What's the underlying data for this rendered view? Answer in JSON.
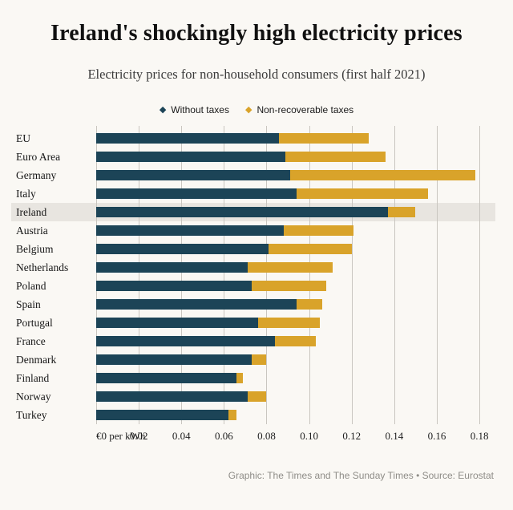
{
  "title": "Ireland's shockingly high electricity prices",
  "subtitle": "Electricity prices for non-household consumers (first half 2021)",
  "legend": [
    {
      "label": "Without taxes",
      "color": "#1c4457"
    },
    {
      "label": "Non-recoverable taxes",
      "color": "#d9a32a"
    }
  ],
  "footer": "Graphic: The Times and The Sunday Times • Source: Eurostat",
  "chart_data": {
    "type": "bar",
    "orientation": "horizontal",
    "stacked": true,
    "title": "Ireland's shockingly high electricity prices",
    "subtitle": "Electricity prices for non-household consumers (first half 2021)",
    "categories": [
      "EU",
      "Euro Area",
      "Germany",
      "Italy",
      "Ireland",
      "Austria",
      "Belgium",
      "Netherlands",
      "Poland",
      "Spain",
      "Portugal",
      "France",
      "Denmark",
      "Finland",
      "Norway",
      "Turkey"
    ],
    "series": [
      {
        "name": "Without taxes",
        "color": "#1c4457",
        "values": [
          0.086,
          0.089,
          0.091,
          0.094,
          0.137,
          0.088,
          0.081,
          0.071,
          0.073,
          0.094,
          0.076,
          0.084,
          0.073,
          0.066,
          0.071,
          0.062
        ]
      },
      {
        "name": "Non-recoverable taxes",
        "color": "#d9a32a",
        "values": [
          0.042,
          0.047,
          0.087,
          0.062,
          0.013,
          0.033,
          0.039,
          0.04,
          0.035,
          0.012,
          0.029,
          0.019,
          0.007,
          0.003,
          0.009,
          0.004
        ]
      }
    ],
    "highlight_category": "Ireland",
    "grid": true,
    "x_axis": {
      "zero_label": "€0 per kWh",
      "ticks": [
        "0.02",
        "0.04",
        "0.06",
        "0.08",
        "0.10",
        "0.12",
        "0.14",
        "0.16",
        "0.18"
      ],
      "max": 0.1875,
      "unit": "€ per kWh"
    },
    "legend_position": "top"
  }
}
